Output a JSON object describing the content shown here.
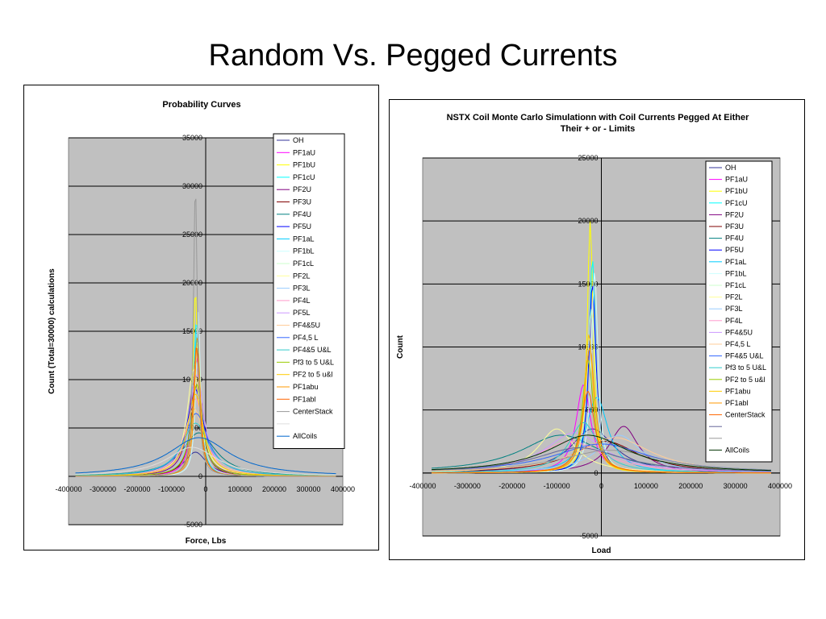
{
  "slide": {
    "title": "Random Vs. Pegged Currents"
  },
  "chart_data": [
    {
      "type": "line",
      "title": "Probability Curves",
      "xlabel": "Force, Lbs",
      "ylabel": "Count (Total=30000)    calculations",
      "xlim": [
        -400000,
        400000
      ],
      "ylim": [
        -5000,
        35000
      ],
      "xticks": [
        -400000,
        -300000,
        -200000,
        -100000,
        0,
        100000,
        200000,
        300000,
        400000
      ],
      "yticks": [
        -5000,
        0,
        5000,
        10000,
        15000,
        20000,
        25000,
        30000,
        35000
      ],
      "grid": "horizontal",
      "plot_background": "#c0c0c0",
      "legend_position": "right",
      "series": [
        {
          "name": "OH",
          "color": "#333399",
          "peak_x": -30000,
          "peak_y": 2500,
          "width": 40000
        },
        {
          "name": "PF1aU",
          "color": "#ff00ff",
          "peak_x": -28000,
          "peak_y": 12500,
          "width": 14000
        },
        {
          "name": "PF1bU",
          "color": "#ffff00",
          "peak_x": -30000,
          "peak_y": 19000,
          "width": 9000
        },
        {
          "name": "PF1cU",
          "color": "#00ffff",
          "peak_x": -27000,
          "peak_y": 16000,
          "width": 10000
        },
        {
          "name": "PF2U",
          "color": "#800080",
          "peak_x": -32000,
          "peak_y": 10000,
          "width": 22000
        },
        {
          "name": "PF3U",
          "color": "#800000",
          "peak_x": -26000,
          "peak_y": 13000,
          "width": 16000
        },
        {
          "name": "PF4U",
          "color": "#008080",
          "peak_x": -20000,
          "peak_y": 4500,
          "width": 60000
        },
        {
          "name": "PF5U",
          "color": "#0000ff",
          "peak_x": -30000,
          "peak_y": 9000,
          "width": 30000
        },
        {
          "name": "PF1aL",
          "color": "#00ccff",
          "peak_x": -25000,
          "peak_y": 15000,
          "width": 11000
        },
        {
          "name": "PF1bL",
          "color": "#ccffff",
          "peak_x": -22000,
          "peak_y": 17000,
          "width": 8000
        },
        {
          "name": "PF1cL",
          "color": "#ccffcc",
          "peak_x": -24000,
          "peak_y": 14000,
          "width": 12000
        },
        {
          "name": "PF2L",
          "color": "#ffff99",
          "peak_x": -35000,
          "peak_y": 11000,
          "width": 24000
        },
        {
          "name": "PF3L",
          "color": "#99ccff",
          "peak_x": -28000,
          "peak_y": 12000,
          "width": 18000
        },
        {
          "name": "PF4L",
          "color": "#ff99cc",
          "peak_x": -30000,
          "peak_y": 8000,
          "width": 32000
        },
        {
          "name": "PF5L",
          "color": "#cc99ff",
          "peak_x": -26000,
          "peak_y": 10500,
          "width": 26000
        },
        {
          "name": "PF4&5U",
          "color": "#ffcc99",
          "peak_x": -34000,
          "peak_y": 7000,
          "width": 36000
        },
        {
          "name": "PF4,5 L",
          "color": "#3366ff",
          "peak_x": -28000,
          "peak_y": 6500,
          "width": 42000
        },
        {
          "name": "PF4&5 U&L",
          "color": "#33cccc",
          "peak_x": -30000,
          "peak_y": 5500,
          "width": 48000
        },
        {
          "name": "Pf3 to 5 U&L",
          "color": "#99cc00",
          "peak_x": -26000,
          "peak_y": 9500,
          "width": 20000
        },
        {
          "name": "PF2 to  5 u&l",
          "color": "#ffcc00",
          "peak_x": -30000,
          "peak_y": 8500,
          "width": 28000
        },
        {
          "name": "PF1abu",
          "color": "#ff9900",
          "peak_x": -24000,
          "peak_y": 14500,
          "width": 10000
        },
        {
          "name": "PF1abl",
          "color": "#ff6600",
          "peak_x": -27000,
          "peak_y": 13500,
          "width": 11000
        },
        {
          "name": "CenterStack",
          "color": "#999999",
          "peak_x": -30000,
          "peak_y": 30000,
          "width": 7000
        },
        {
          "name": "",
          "color": "#dddddd",
          "peak_x": -40000,
          "peak_y": 3000,
          "width": 90000
        },
        {
          "name": "AllCoils",
          "color": "#0066cc",
          "peak_x": -20000,
          "peak_y": 4000,
          "width": 110000
        }
      ]
    },
    {
      "type": "line",
      "title": "NSTX Coil Monte Carlo Simulationn with Coil Currents Pegged At Either Their + or - Limits",
      "title_lines": [
        "NSTX Coil Monte Carlo Simulationn with Coil Currents Pegged At Either",
        "Their + or - Limits"
      ],
      "xlabel": "Load",
      "ylabel": "Count",
      "xlim": [
        -400000,
        400000
      ],
      "ylim": [
        -5000,
        25000
      ],
      "xticks": [
        -400000,
        -300000,
        -200000,
        -100000,
        0,
        100000,
        200000,
        300000,
        400000
      ],
      "yticks": [
        -5000,
        0,
        5000,
        10000,
        15000,
        20000,
        25000
      ],
      "grid": "horizontal",
      "plot_background": "#c0c0c0",
      "legend_position": "right",
      "series": [
        {
          "name": "OH",
          "color": "#333399",
          "peak_x": -20000,
          "peak_y": 3500,
          "width": 60000
        },
        {
          "name": "PF1aU",
          "color": "#ff00ff",
          "peak_x": -40000,
          "peak_y": 7000,
          "width": 20000
        },
        {
          "name": "PF1bU",
          "color": "#ffff00",
          "peak_x": -25000,
          "peak_y": 20000,
          "width": 8000
        },
        {
          "name": "PF1cU",
          "color": "#00ffff",
          "peak_x": -20000,
          "peak_y": 17000,
          "width": 9000
        },
        {
          "name": "PF2U",
          "color": "#800080",
          "peak_x": 50000,
          "peak_y": 3700,
          "width": 40000
        },
        {
          "name": "PF3U",
          "color": "#800000",
          "peak_x": 10000,
          "peak_y": 2500,
          "width": 90000
        },
        {
          "name": "PF4U",
          "color": "#008080",
          "peak_x": -90000,
          "peak_y": 3000,
          "width": 110000
        },
        {
          "name": "PF5U",
          "color": "#0000ff",
          "peak_x": -20000,
          "peak_y": 15000,
          "width": 10000
        },
        {
          "name": "PF1aL",
          "color": "#00ccff",
          "peak_x": -10000,
          "peak_y": 6000,
          "width": 30000
        },
        {
          "name": "PF1bL",
          "color": "#ccffff",
          "peak_x": -15000,
          "peak_y": 16000,
          "width": 9000
        },
        {
          "name": "PF1cL",
          "color": "#ccffcc",
          "peak_x": -22000,
          "peak_y": 13000,
          "width": 12000
        },
        {
          "name": "PF2L",
          "color": "#ffff99",
          "peak_x": -100000,
          "peak_y": 3500,
          "width": 50000
        },
        {
          "name": "PF3L",
          "color": "#99ccff",
          "peak_x": 40000,
          "peak_y": 3000,
          "width": 60000
        },
        {
          "name": "PF4L",
          "color": "#ff99cc",
          "peak_x": -70000,
          "peak_y": 2500,
          "width": 90000
        },
        {
          "name": "PF4&5U",
          "color": "#cc99ff",
          "peak_x": -60000,
          "peak_y": 3200,
          "width": 80000
        },
        {
          "name": "PF4,5 L",
          "color": "#ffcc99",
          "peak_x": 30000,
          "peak_y": 2800,
          "width": 100000
        },
        {
          "name": "PF4&5 U&L",
          "color": "#3366ff",
          "peak_x": 0,
          "peak_y": 2300,
          "width": 130000
        },
        {
          "name": "Pf3 to 5 U&L",
          "color": "#33cccc",
          "peak_x": -40000,
          "peak_y": 4000,
          "width": 40000
        },
        {
          "name": "PF2 to  5 u&l",
          "color": "#99cc00",
          "peak_x": -30000,
          "peak_y": 9000,
          "width": 15000
        },
        {
          "name": "PF1abu",
          "color": "#ffcc00",
          "peak_x": -28000,
          "peak_y": 11000,
          "width": 12000
        },
        {
          "name": "PF1abl",
          "color": "#ff9900",
          "peak_x": -26000,
          "peak_y": 10000,
          "width": 14000
        },
        {
          "name": "CenterStack",
          "color": "#ff6600",
          "peak_x": -30000,
          "peak_y": 6500,
          "width": 18000
        },
        {
          "name": "",
          "color": "#666699",
          "peak_x": -50000,
          "peak_y": 2000,
          "width": 120000
        },
        {
          "name": "",
          "color": "#999999",
          "peak_x": 20000,
          "peak_y": 1800,
          "width": 140000
        },
        {
          "name": "AllCoils",
          "color": "#003300",
          "peak_x": -30000,
          "peak_y": 3000,
          "width": 110000
        }
      ]
    }
  ]
}
